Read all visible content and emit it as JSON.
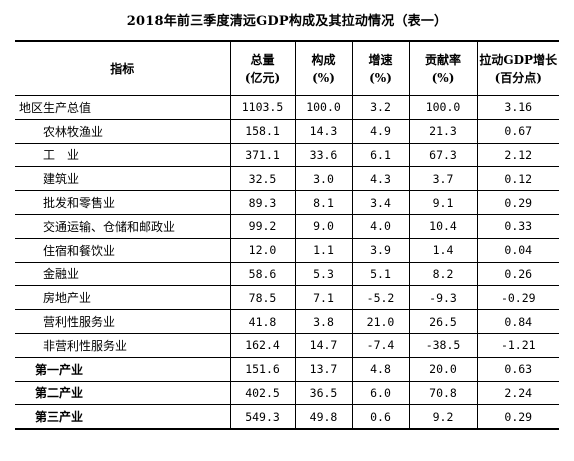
{
  "title": "2018年前三季度清远GDP构成及其拉动情况（表一）",
  "headers": {
    "name": "指标",
    "total_line1": "总量",
    "total_line2": "(亿元)",
    "share_line1": "构成",
    "share_line2": "(%)",
    "growth_line1": "增速",
    "growth_line2": "(%)",
    "contribution_line1": "贡献率",
    "contribution_line2": "(%)",
    "pull_line1": "拉动GDP增长",
    "pull_line2": "(百分点)"
  },
  "rows": [
    {
      "name": "地区生产总值",
      "total": "1103.5",
      "share": "100.0",
      "growth": "3.2",
      "contribution": "100.0",
      "pull": "3.16"
    },
    {
      "name": "农林牧渔业",
      "total": "158.1",
      "share": "14.3",
      "growth": "4.9",
      "contribution": "21.3",
      "pull": "0.67"
    },
    {
      "name": "工　业",
      "total": "371.1",
      "share": "33.6",
      "growth": "6.1",
      "contribution": "67.3",
      "pull": "2.12"
    },
    {
      "name": "建筑业",
      "total": "32.5",
      "share": "3.0",
      "growth": "4.3",
      "contribution": "3.7",
      "pull": "0.12"
    },
    {
      "name": "批发和零售业",
      "total": "89.3",
      "share": "8.1",
      "growth": "3.4",
      "contribution": "9.1",
      "pull": "0.29"
    },
    {
      "name": "交通运输、仓储和邮政业",
      "total": "99.2",
      "share": "9.0",
      "growth": "4.0",
      "contribution": "10.4",
      "pull": "0.33"
    },
    {
      "name": "住宿和餐饮业",
      "total": "12.0",
      "share": "1.1",
      "growth": "3.9",
      "contribution": "1.4",
      "pull": "0.04"
    },
    {
      "name": "金融业",
      "total": "58.6",
      "share": "5.3",
      "growth": "5.1",
      "contribution": "8.2",
      "pull": "0.26"
    },
    {
      "name": "房地产业",
      "total": "78.5",
      "share": "7.1",
      "growth": "-5.2",
      "contribution": "-9.3",
      "pull": "-0.29"
    },
    {
      "name": "营利性服务业",
      "total": "41.8",
      "share": "3.8",
      "growth": "21.0",
      "contribution": "26.5",
      "pull": "0.84"
    },
    {
      "name": "非营利性服务业",
      "total": "162.4",
      "share": "14.7",
      "growth": "-7.4",
      "contribution": "-38.5",
      "pull": "-1.21"
    },
    {
      "name": "第一产业",
      "total": "151.6",
      "share": "13.7",
      "growth": "4.8",
      "contribution": "20.0",
      "pull": "0.63"
    },
    {
      "name": "第二产业",
      "total": "402.5",
      "share": "36.5",
      "growth": "6.0",
      "contribution": "70.8",
      "pull": "2.24"
    },
    {
      "name": "第三产业",
      "total": "549.3",
      "share": "49.8",
      "growth": "0.6",
      "contribution": "9.2",
      "pull": "0.29"
    }
  ]
}
